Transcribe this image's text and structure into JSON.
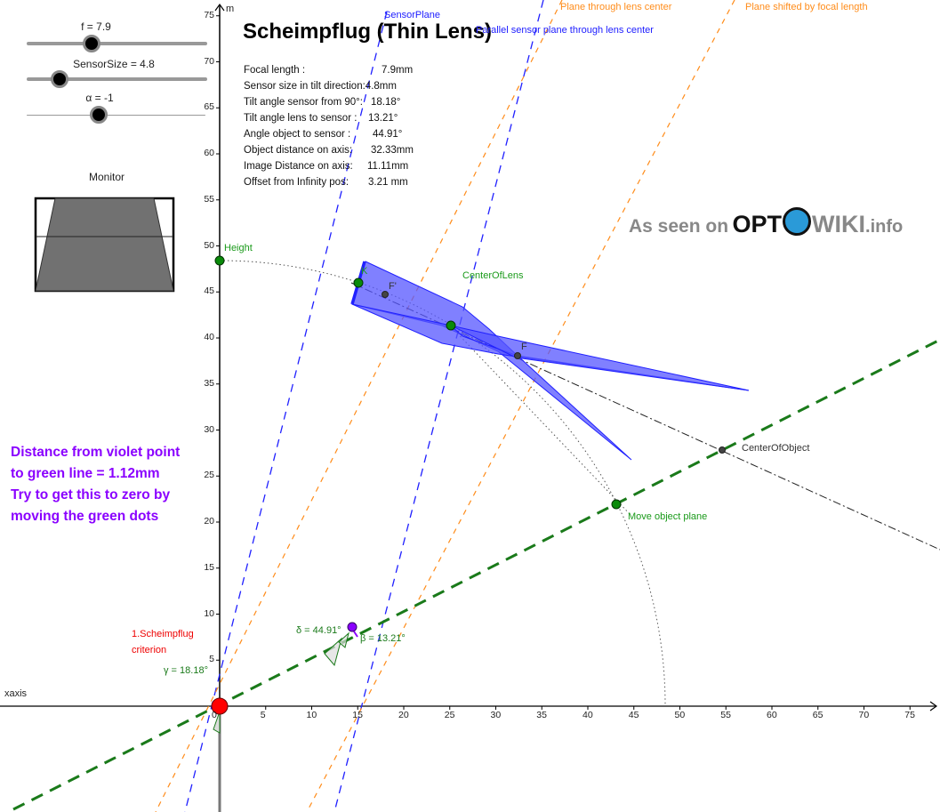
{
  "title": "Scheimpflug (Thin Lens)",
  "sliders": [
    {
      "label": "f = 7.9",
      "value": 7.9
    },
    {
      "label": "SensorSize = 4.8",
      "value": 4.8
    },
    {
      "label": "α = -1",
      "value": -1
    }
  ],
  "monitor": {
    "label": "Monitor"
  },
  "info": [
    {
      "label": "Focal length :",
      "value": "7.9mm"
    },
    {
      "label": "Sensor size in tilt direction:",
      "value": "4.8mm"
    },
    {
      "label": "Tilt angle sensor from 90°:",
      "value": "18.18°"
    },
    {
      "label": "Tilt angle lens to sensor :",
      "value": "13.21°"
    },
    {
      "label": "Angle object to sensor    :",
      "value": "44.91°"
    },
    {
      "label": "Object distance on axis:",
      "value": "32.33mm"
    },
    {
      "label": "Image Distance on axis:",
      "value": "11.11mm"
    },
    {
      "label": "Offset from Infinity pos:",
      "value": "3.21 mm"
    }
  ],
  "message": {
    "lines": [
      "Distance from violet point",
      "to green line = 1.12mm",
      "Try to get this to zero by",
      "moving the green dots"
    ]
  },
  "logo": {
    "prefix": "As seen on",
    "brand1": "OPT",
    "brand2": "WIKI",
    "suffix": ".info"
  },
  "labels": {
    "sensor_plane": "SensorPlane",
    "parallel_plane": "Parallel sensor plane through lens center",
    "plane_lens_center": "Plane through lens center",
    "plane_shifted": "Plane shifted by focal length",
    "height": "Height",
    "k": "K",
    "f_prime": "F'",
    "f": "F",
    "center_of_lens": "CenterOfLens",
    "center_of_object": "CenterOfObject",
    "move_object_plane": "Move object plane",
    "criterion_1": "1.Scheimpflug",
    "criterion_2": "criterion",
    "gamma": "γ = 18.18°",
    "delta": "δ = 44.91°",
    "beta": "β = 13.21°",
    "xaxis": "xaxis",
    "yaxis": "m"
  },
  "axes": {
    "x_ticks": [
      "0",
      "5",
      "10",
      "15",
      "20",
      "25",
      "30",
      "35",
      "40",
      "45",
      "50",
      "55",
      "60",
      "65",
      "70",
      "75"
    ],
    "y_ticks": [
      "5",
      "10",
      "15",
      "20",
      "25",
      "30",
      "35",
      "40",
      "45",
      "50",
      "55",
      "60",
      "65",
      "70",
      "75"
    ]
  },
  "colors": {
    "sensor_blue": "#2020ff",
    "orange": "#ff8c1a",
    "green": "#1a7a1a",
    "point_green": "#0a8a0a",
    "red": "#ff0000",
    "violet": "#8a00ff",
    "lens_fill": "#6666ff"
  }
}
